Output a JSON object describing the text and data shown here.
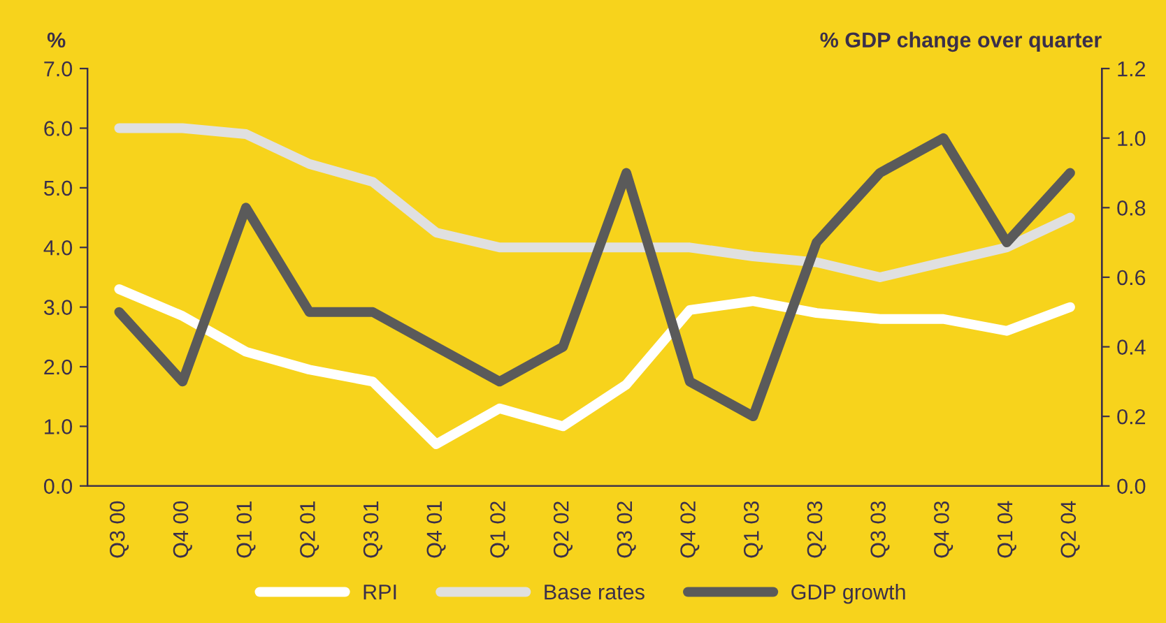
{
  "chart_data": {
    "type": "line",
    "ylabel": "%",
    "y2label": "% GDP change over quarter",
    "categories": [
      "Q3 00",
      "Q4 00",
      "Q1 01",
      "Q2 01",
      "Q3 01",
      "Q4 01",
      "Q1 02",
      "Q2 02",
      "Q3 02",
      "Q4 02",
      "Q1 03",
      "Q2 03",
      "Q3 03",
      "Q4 03",
      "Q1 04",
      "Q2 04"
    ],
    "series": [
      {
        "name": "RPI",
        "color": "#ffffff",
        "values": [
          3.3,
          2.85,
          2.25,
          1.95,
          1.75,
          0.7,
          1.3,
          1.0,
          1.7,
          2.95,
          3.1,
          2.9,
          2.8,
          2.8,
          2.6,
          3.0
        ]
      },
      {
        "name": "Base rates",
        "color": "#e0e0e0",
        "values": [
          6.0,
          6.0,
          5.9,
          5.4,
          5.1,
          4.25,
          4.0,
          4.0,
          4.0,
          4.0,
          3.85,
          3.75,
          3.5,
          3.75,
          4.0,
          4.5
        ]
      },
      {
        "name": "GDP growth",
        "color": "#5a5a5a",
        "axis": "y2",
        "values": [
          0.5,
          0.3,
          0.8,
          0.5,
          0.5,
          0.4,
          0.3,
          0.4,
          0.9,
          0.3,
          0.2,
          0.7,
          0.9,
          1.0,
          0.7,
          0.9
        ]
      }
    ],
    "ylim": [
      0,
      7
    ],
    "yticks": [
      {
        "value": 0,
        "label": "0.0"
      },
      {
        "value": 1,
        "label": "1.0"
      },
      {
        "value": 2,
        "label": "2.0"
      },
      {
        "value": 3,
        "label": "3.0"
      },
      {
        "value": 4,
        "label": "4.0"
      },
      {
        "value": 5,
        "label": "5.0"
      },
      {
        "value": 6,
        "label": "6.0"
      },
      {
        "value": 7,
        "label": "7.0"
      }
    ],
    "y2lim": [
      0,
      1.2
    ],
    "y2ticks": [
      {
        "value": 0,
        "label": "0.0"
      },
      {
        "value": 0.2,
        "label": "0.2"
      },
      {
        "value": 0.4,
        "label": "0.4"
      },
      {
        "value": 0.6,
        "label": "0.6"
      },
      {
        "value": 0.8,
        "label": "0.8"
      },
      {
        "value": 1.0,
        "label": "1.0"
      },
      {
        "value": 1.2,
        "label": "1.2"
      }
    ],
    "grid": false,
    "legend": "bottom",
    "marker": "none",
    "line_style": "solid"
  }
}
